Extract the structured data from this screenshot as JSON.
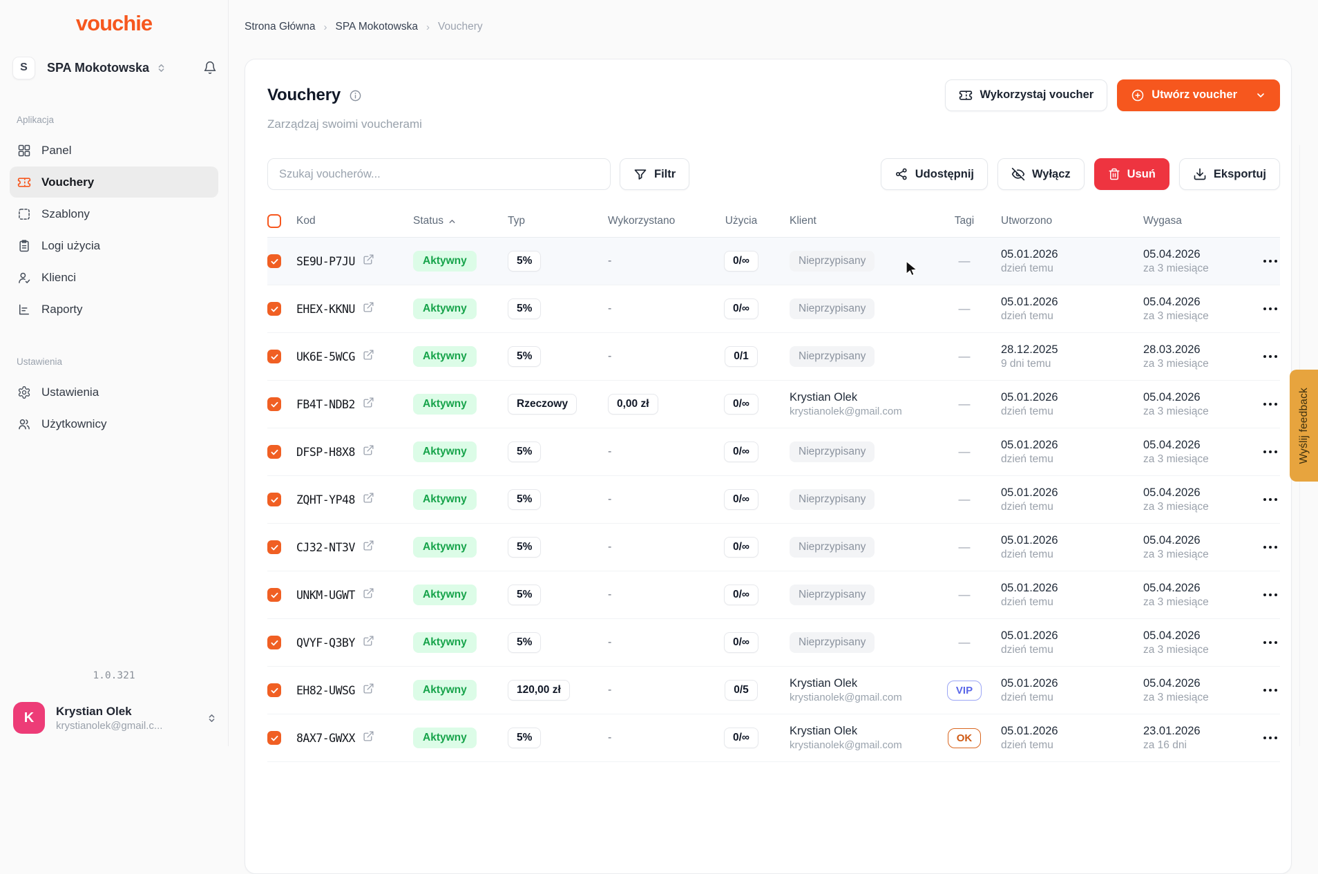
{
  "brand": {
    "logo": "vouchie",
    "version": "1.0.321",
    "accent": "#f6571e"
  },
  "workspace": {
    "initial": "S",
    "name": "SPA Mokotowska"
  },
  "sidebar": {
    "sections": [
      {
        "label": "Aplikacja",
        "items": [
          {
            "label": "Panel",
            "icon": "grid-icon",
            "active": false
          },
          {
            "label": "Vouchery",
            "icon": "ticket-icon",
            "active": true
          },
          {
            "label": "Szablony",
            "icon": "template-icon",
            "active": false
          },
          {
            "label": "Logi użycia",
            "icon": "clipboard-icon",
            "active": false
          },
          {
            "label": "Klienci",
            "icon": "user-check-icon",
            "active": false
          },
          {
            "label": "Raporty",
            "icon": "chart-icon",
            "active": false
          }
        ]
      },
      {
        "label": "Ustawienia",
        "items": [
          {
            "label": "Ustawienia",
            "icon": "gear-icon",
            "active": false
          },
          {
            "label": "Użytkownicy",
            "icon": "users-icon",
            "active": false
          }
        ]
      }
    ],
    "user": {
      "initial": "K",
      "name": "Krystian Olek",
      "email": "krystianolek@gmail.c...",
      "avatar_color": "#ed3c77"
    }
  },
  "breadcrumb": {
    "items": [
      "Strona Główna",
      "SPA Mokotowska",
      "Vouchery"
    ]
  },
  "page": {
    "title": "Vouchery",
    "subtitle": "Zarządzaj swoimi voucherami"
  },
  "header_actions": {
    "use_voucher": "Wykorzystaj voucher",
    "create_voucher": "Utwórz voucher"
  },
  "toolbar": {
    "search_placeholder": "Szukaj voucherów...",
    "filter": "Filtr",
    "share": "Udostępnij",
    "disable": "Wyłącz",
    "delete": "Usuń",
    "export": "Eksportuj"
  },
  "feedback_tab": {
    "label": "Wyślij feedback",
    "color": "#e7a43e"
  },
  "table": {
    "columns": [
      "Kod",
      "Status",
      "Typ",
      "Wykorzystano",
      "Użycia",
      "Klient",
      "Tagi",
      "Utworzono",
      "Wygasa"
    ],
    "sort": {
      "column": "Status",
      "direction": "asc"
    },
    "rows": [
      {
        "code": "SE9U-P7JU",
        "status": "Aktywny",
        "typ": "5%",
        "used": "-",
        "usage": "0/∞",
        "client": {
          "unassigned": "Nieprzypisany"
        },
        "tag": null,
        "created": {
          "date": "05.01.2026",
          "rel": "dzień temu"
        },
        "expires": {
          "date": "05.04.2026",
          "rel": "za 3 miesiące"
        },
        "highlighted": true
      },
      {
        "code": "EHEX-KKNU",
        "status": "Aktywny",
        "typ": "5%",
        "used": "-",
        "usage": "0/∞",
        "client": {
          "unassigned": "Nieprzypisany"
        },
        "tag": null,
        "created": {
          "date": "05.01.2026",
          "rel": "dzień temu"
        },
        "expires": {
          "date": "05.04.2026",
          "rel": "za 3 miesiące"
        },
        "highlighted": false
      },
      {
        "code": "UK6E-5WCG",
        "status": "Aktywny",
        "typ": "5%",
        "used": "-",
        "usage": "0/1",
        "client": {
          "unassigned": "Nieprzypisany"
        },
        "tag": null,
        "created": {
          "date": "28.12.2025",
          "rel": "9 dni temu"
        },
        "expires": {
          "date": "28.03.2026",
          "rel": "za 3 miesiące"
        },
        "highlighted": false
      },
      {
        "code": "FB4T-NDB2",
        "status": "Aktywny",
        "typ": "Rzeczowy",
        "used": "0,00 zł",
        "usage": "0/∞",
        "client": {
          "name": "Krystian Olek",
          "email": "krystianolek@gmail.com"
        },
        "tag": null,
        "created": {
          "date": "05.01.2026",
          "rel": "dzień temu"
        },
        "expires": {
          "date": "05.04.2026",
          "rel": "za 3 miesiące"
        },
        "highlighted": false
      },
      {
        "code": "DFSP-H8X8",
        "status": "Aktywny",
        "typ": "5%",
        "used": "-",
        "usage": "0/∞",
        "client": {
          "unassigned": "Nieprzypisany"
        },
        "tag": null,
        "created": {
          "date": "05.01.2026",
          "rel": "dzień temu"
        },
        "expires": {
          "date": "05.04.2026",
          "rel": "za 3 miesiące"
        },
        "highlighted": false
      },
      {
        "code": "ZQHT-YP48",
        "status": "Aktywny",
        "typ": "5%",
        "used": "-",
        "usage": "0/∞",
        "client": {
          "unassigned": "Nieprzypisany"
        },
        "tag": null,
        "created": {
          "date": "05.01.2026",
          "rel": "dzień temu"
        },
        "expires": {
          "date": "05.04.2026",
          "rel": "za 3 miesiące"
        },
        "highlighted": false
      },
      {
        "code": "CJ32-NT3V",
        "status": "Aktywny",
        "typ": "5%",
        "used": "-",
        "usage": "0/∞",
        "client": {
          "unassigned": "Nieprzypisany"
        },
        "tag": null,
        "created": {
          "date": "05.01.2026",
          "rel": "dzień temu"
        },
        "expires": {
          "date": "05.04.2026",
          "rel": "za 3 miesiące"
        },
        "highlighted": false
      },
      {
        "code": "UNKM-UGWT",
        "status": "Aktywny",
        "typ": "5%",
        "used": "-",
        "usage": "0/∞",
        "client": {
          "unassigned": "Nieprzypisany"
        },
        "tag": null,
        "created": {
          "date": "05.01.2026",
          "rel": "dzień temu"
        },
        "expires": {
          "date": "05.04.2026",
          "rel": "za 3 miesiące"
        },
        "highlighted": false
      },
      {
        "code": "QVYF-Q3BY",
        "status": "Aktywny",
        "typ": "5%",
        "used": "-",
        "usage": "0/∞",
        "client": {
          "unassigned": "Nieprzypisany"
        },
        "tag": null,
        "created": {
          "date": "05.01.2026",
          "rel": "dzień temu"
        },
        "expires": {
          "date": "05.04.2026",
          "rel": "za 3 miesiące"
        },
        "highlighted": false
      },
      {
        "code": "EH82-UWSG",
        "status": "Aktywny",
        "typ": "120,00 zł",
        "used": "-",
        "usage": "0/5",
        "client": {
          "name": "Krystian Olek",
          "email": "krystianolek@gmail.com"
        },
        "tag": {
          "label": "VIP",
          "style": "indigo"
        },
        "created": {
          "date": "05.01.2026",
          "rel": "dzień temu"
        },
        "expires": {
          "date": "05.04.2026",
          "rel": "za 3 miesiące"
        },
        "highlighted": false
      },
      {
        "code": "8AX7-GWXX",
        "status": "Aktywny",
        "typ": "5%",
        "used": "-",
        "usage": "0/∞",
        "client": {
          "name": "Krystian Olek",
          "email": "krystianolek@gmail.com"
        },
        "tag": {
          "label": "OK",
          "style": "orange"
        },
        "created": {
          "date": "05.01.2026",
          "rel": "dzień temu"
        },
        "expires": {
          "date": "23.01.2026",
          "rel": "za 16 dni"
        },
        "highlighted": false
      }
    ]
  }
}
